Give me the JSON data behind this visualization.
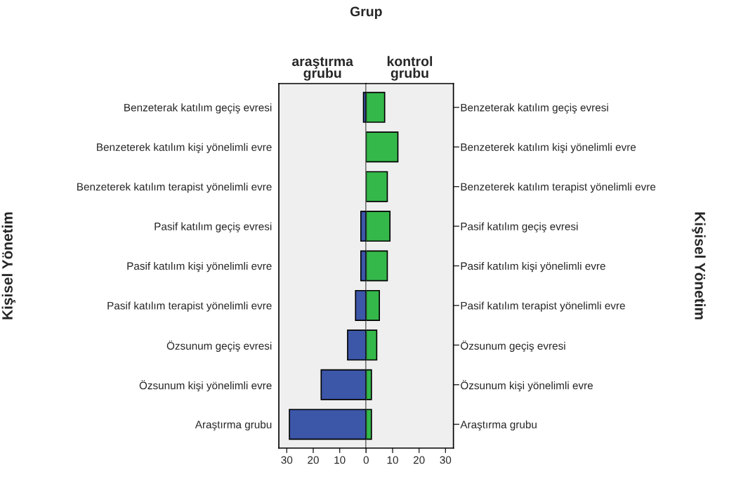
{
  "chart_data": [
    {
      "type": "bar",
      "orientation": "horizontal",
      "title": "araştırma grubu",
      "ylabel": "Kişisel Yönetim",
      "annotations": [
        "Grup"
      ],
      "categories": [
        "Benzeterak katılım geçiş evresi",
        "Benzeterek katılım kişi yönelimli evre",
        "Benzeterek katılım terapist yönelimli evre",
        "Pasif katılım geçiş evresi",
        "Pasif katılım kişi yönelimli evre",
        "Pasif katılım terapist yönelimli evre",
        "Özsunum geçiş evresi",
        "Özsunum kişi yönelimli evre",
        "Araştırma grubu"
      ],
      "series": [
        {
          "color": "#3c56a8",
          "values": [
            1,
            null,
            null,
            2,
            2,
            4,
            7,
            17,
            29
          ]
        }
      ],
      "xlim": [
        33,
        0
      ],
      "xticks": [
        30,
        20,
        10,
        0
      ],
      "ref_lines": [
        {
          "axis": "x",
          "value": 0
        }
      ],
      "grid": false
    },
    {
      "type": "bar",
      "orientation": "horizontal",
      "title": "kontrol grubu",
      "ylabel": "Kişisel Yönetim",
      "categories": [
        "Benzeterak katılım geçiş evresi",
        "Benzeterek katılım kişi yönelimli evre",
        "Benzeterek katılım terapist yönelimli evre",
        "Pasif katılım geçiş evresi",
        "Pasif katılım kişi yönelimli evre",
        "Pasif katılım terapist yönelimli evre",
        "Özsunum geçiş evresi",
        "Özsunum kişi yönelimli evre",
        "Araştırma grubu"
      ],
      "series": [
        {
          "color": "#34b84a",
          "values": [
            7,
            12,
            8,
            9,
            8,
            5,
            4,
            2,
            2
          ]
        }
      ],
      "xlim": [
        0,
        33
      ],
      "xticks": [
        {
          "value": 0,
          "label": null
        },
        10,
        20,
        30
      ],
      "grid": false
    }
  ]
}
